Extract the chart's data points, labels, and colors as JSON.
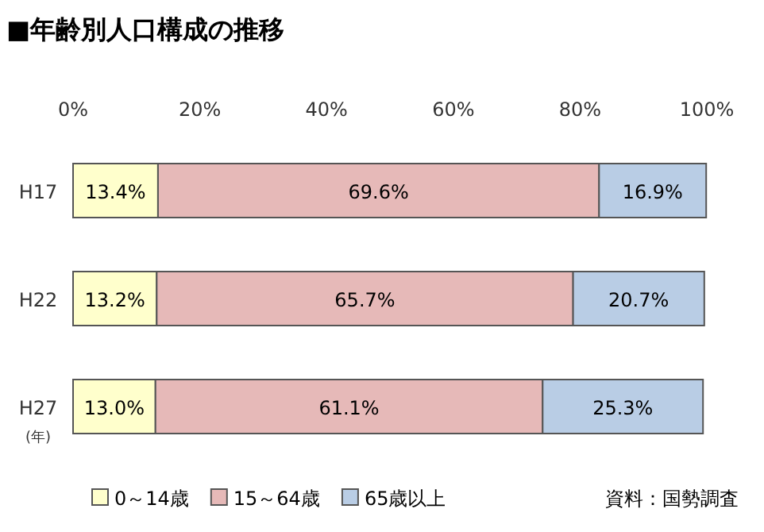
{
  "chart_data": {
    "type": "bar",
    "orientation": "horizontal",
    "stacked": true,
    "title": "■年齢別人口構成の推移",
    "categories": [
      "H17",
      "H22",
      "H27"
    ],
    "series": [
      {
        "name": "0～14歳",
        "color": "#ffffcc",
        "values": [
          13.4,
          13.2,
          13.0
        ],
        "value_labels": [
          "13.4%",
          "13.2%",
          "13.0%"
        ]
      },
      {
        "name": "15～64歳",
        "color": "#e6b9b8",
        "values": [
          69.6,
          65.7,
          61.1
        ],
        "value_labels": [
          "69.6%",
          "65.7%",
          "61.1%"
        ]
      },
      {
        "name": "65歳以上",
        "color": "#b9cde5",
        "values": [
          16.9,
          20.7,
          25.3
        ],
        "value_labels": [
          "16.9%",
          "20.7%",
          "25.3%"
        ]
      }
    ],
    "xlim": [
      0,
      100
    ],
    "xticks": [
      {
        "value": 0,
        "label": "0%"
      },
      {
        "value": 20,
        "label": "20%"
      },
      {
        "value": 40,
        "label": "40%"
      },
      {
        "value": 60,
        "label": "60%"
      },
      {
        "value": 80,
        "label": "80%"
      },
      {
        "value": 100,
        "label": "100%"
      }
    ],
    "annotations": [
      "(年)",
      "資料：国勢調査"
    ],
    "legend": "bottom left",
    "grid": false
  }
}
